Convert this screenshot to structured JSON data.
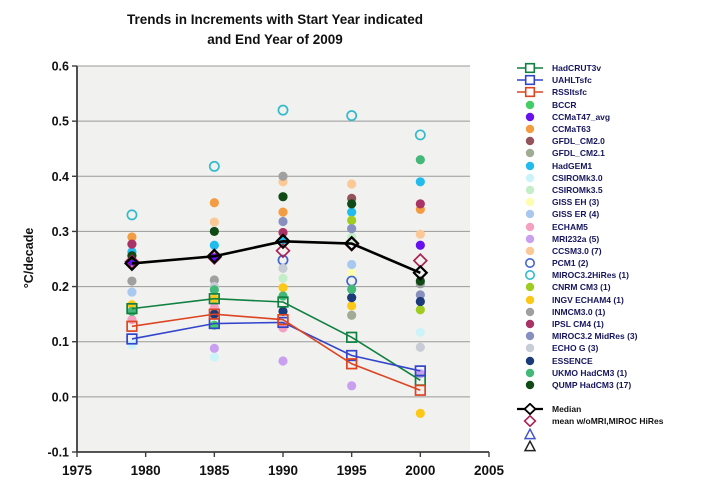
{
  "title": {
    "line1": "Trends in Increments with Start Year indicated",
    "line2": "and End Year of 2009"
  },
  "y_axis": {
    "label": "°C/decade",
    "tick_labels": [
      "0.6",
      "0.5",
      "0.4",
      "0.3",
      "0.2",
      "0.1",
      "0.0",
      "-0.1"
    ],
    "min": -0.1,
    "max": 0.6
  },
  "x_axis": {
    "tick_labels": [
      "1975",
      "1980",
      "1985",
      "1990",
      "1995",
      "2000",
      "2005"
    ],
    "min": 1975,
    "max": 2005
  },
  "palette": {
    "plot_background": "#f1f1ef",
    "gridline": "#9a9a9a",
    "axis": "#3d3d3d",
    "legend_text": "#15155d",
    "median_text": "#111111"
  },
  "chart_data": {
    "type": "scatter",
    "note": "Linear trends (C/decade) of increments beginning at indicated start year and ending 2009; values estimated from plot",
    "x": [
      1979,
      1985,
      1990,
      1995,
      2000
    ],
    "xlim": [
      1975,
      2005
    ],
    "ylim": [
      -0.1,
      0.6
    ],
    "grid": true,
    "legend_position": "right",
    "series": [
      {
        "name": "HadCRUT3v",
        "kind": "line",
        "marker": "square-open",
        "color": "#108040",
        "values": [
          0.16,
          0.178,
          0.172,
          0.108,
          0.03
        ]
      },
      {
        "name": "UAHLTsfc",
        "kind": "line",
        "marker": "square-open",
        "color": "#3344cc",
        "values": [
          0.105,
          0.133,
          0.135,
          0.075,
          0.047
        ]
      },
      {
        "name": "RSSltsfc",
        "kind": "line",
        "marker": "square-open",
        "color": "#dd4422",
        "values": [
          0.128,
          0.15,
          0.14,
          0.06,
          0.012
        ]
      },
      {
        "name": "BCCR",
        "kind": "scatter",
        "marker": "circle",
        "color": "#44cc66",
        "values": [
          null,
          0.13,
          null,
          null,
          null
        ]
      },
      {
        "name": "CCMaT47_avg",
        "kind": "scatter",
        "marker": "circle",
        "color": "#6611ee",
        "values": [
          0.246,
          0.252,
          null,
          null,
          0.275
        ]
      },
      {
        "name": "CCMaT63",
        "kind": "scatter",
        "marker": "circle",
        "color": "#f49c42",
        "values": [
          0.29,
          0.352,
          0.335,
          null,
          0.34
        ]
      },
      {
        "name": "GFDL_CM2.0",
        "kind": "scatter",
        "marker": "circle",
        "color": "#94525a",
        "values": [
          null,
          null,
          null,
          0.36,
          null
        ]
      },
      {
        "name": "GFDL_CM2.1",
        "kind": "scatter",
        "marker": "circle",
        "color": "#a0ac94",
        "values": [
          null,
          null,
          null,
          0.148,
          null
        ]
      },
      {
        "name": "HadGEM1",
        "kind": "scatter",
        "marker": "circle",
        "color": "#22bbee",
        "values": [
          0.263,
          0.275,
          0.285,
          0.335,
          0.39
        ]
      },
      {
        "name": "CSIROMk3.0",
        "kind": "scatter",
        "marker": "circle",
        "color": "#ccf4f8",
        "values": [
          0.095,
          0.072,
          null,
          null,
          0.117
        ]
      },
      {
        "name": "CSIROMk3.5",
        "kind": "scatter",
        "marker": "circle",
        "color": "#c4eec8",
        "values": [
          null,
          null,
          0.215,
          0.29,
          null
        ]
      },
      {
        "name": "GISS EH (3)",
        "kind": "scatter",
        "marker": "circle",
        "color": "#fdfdb0",
        "values": [
          null,
          null,
          null,
          0.225,
          null
        ]
      },
      {
        "name": "GISS ER (4)",
        "kind": "scatter",
        "marker": "circle",
        "color": "#a8c8f0",
        "values": [
          0.19,
          null,
          null,
          0.24,
          null
        ]
      },
      {
        "name": "ECHAM5",
        "kind": "scatter",
        "marker": "circle",
        "color": "#f4a0c0",
        "values": [
          0.14,
          0.162,
          0.125,
          null,
          null
        ]
      },
      {
        "name": "MRI232a (5)",
        "kind": "scatter",
        "marker": "circle",
        "color": "#c9a0f0",
        "values": [
          null,
          0.088,
          0.065,
          0.02,
          0.042
        ]
      },
      {
        "name": "CCSM3.0 (7)",
        "kind": "scatter",
        "marker": "circle",
        "color": "#fcc896",
        "values": [
          null,
          0.317,
          0.39,
          0.386,
          0.295
        ]
      },
      {
        "name": "PCM1 (2)",
        "kind": "scatter",
        "marker": "circle-open",
        "color": "#4466cc",
        "values": [
          null,
          null,
          0.248,
          0.21,
          null
        ]
      },
      {
        "name": "MIROC3.2HiRes (1)",
        "kind": "scatter",
        "marker": "circle-open",
        "color": "#33bbcc",
        "values": [
          0.33,
          0.418,
          0.52,
          0.51,
          0.475
        ]
      },
      {
        "name": "CNRM CM3 (1)",
        "kind": "scatter",
        "marker": "circle",
        "color": "#a0cc22",
        "values": [
          null,
          null,
          null,
          0.32,
          0.158
        ]
      },
      {
        "name": "INGV ECHAM4 (1)",
        "kind": "scatter",
        "marker": "circle",
        "color": "#fcc818",
        "values": [
          0.167,
          0.178,
          0.198,
          0.165,
          -0.03
        ]
      },
      {
        "name": "INMCM3.0 (1)",
        "kind": "scatter",
        "marker": "circle",
        "color": "#a0a0a0",
        "values": [
          0.21,
          0.212,
          0.4,
          null,
          0.205
        ]
      },
      {
        "name": "IPSL CM4 (1)",
        "kind": "scatter",
        "marker": "circle",
        "color": "#aa3366",
        "values": [
          0.277,
          null,
          0.298,
          null,
          0.35
        ]
      },
      {
        "name": "MIROC3.2 MidRes (3)",
        "kind": "scatter",
        "marker": "circle",
        "color": "#8890c0",
        "values": [
          null,
          null,
          0.318,
          0.305,
          0.185
        ]
      },
      {
        "name": "ECHO G (3)",
        "kind": "scatter",
        "marker": "circle",
        "color": "#c8ccd4",
        "values": [
          null,
          0.2,
          0.233,
          null,
          0.09
        ]
      },
      {
        "name": "ESSENCE",
        "kind": "scatter",
        "marker": "circle",
        "color": "#1a3a7a",
        "values": [
          null,
          0.15,
          0.155,
          0.18,
          0.173
        ]
      },
      {
        "name": "UKMO HadCM3 (1)",
        "kind": "scatter",
        "marker": "circle",
        "color": "#44b878",
        "values": [
          0.155,
          0.194,
          0.183,
          0.195,
          0.43
        ]
      },
      {
        "name": "QUMP HadCM3 (17)",
        "kind": "scatter",
        "marker": "circle",
        "color": "#104a14",
        "values": [
          0.256,
          0.3,
          0.363,
          0.35,
          0.21
        ]
      },
      {
        "name": "Median",
        "kind": "line",
        "marker": "diamond-open",
        "color": "#000000",
        "values": [
          0.242,
          0.255,
          0.282,
          0.278,
          0.225
        ]
      },
      {
        "name": "mean w/oMRI,MIROC HiRes",
        "kind": "scatter",
        "marker": "diamond-open",
        "color": "#aa2255",
        "values": [
          0.245,
          0.253,
          0.265,
          0.277,
          0.247
        ]
      }
    ],
    "extra_legend_markers": [
      {
        "label": "",
        "marker": "triangle-open",
        "color": "#4455cc"
      },
      {
        "label": "",
        "marker": "triangle-open",
        "color": "#222222"
      }
    ]
  }
}
